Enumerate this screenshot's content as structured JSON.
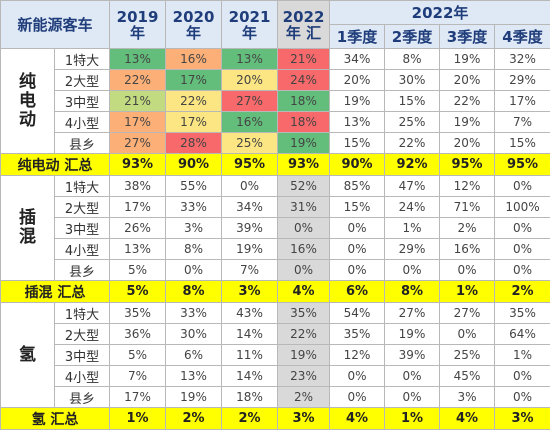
{
  "header": {
    "title": "新能源客车",
    "years": [
      {
        "year": "2019",
        "suffix": "年"
      },
      {
        "year": "2020",
        "suffix": "年"
      },
      {
        "year": "2021",
        "suffix": "年"
      },
      {
        "year": "2022",
        "suffix": "年 汇"
      }
    ],
    "quarter_group": "2022年",
    "quarters": [
      "1季度",
      "2季度",
      "3季度",
      "4季度"
    ]
  },
  "colors": {
    "green": "#63be7b",
    "yellow_green": "#c2db80",
    "yellow": "#fbe683",
    "orange": "#fcb078",
    "red": "#f8696b",
    "summary": "#ffff00",
    "header_bg": "#dfe9f6",
    "gray_col": "#d9d9d9"
  },
  "groups": [
    {
      "label": "纯电动",
      "rows": [
        {
          "sub": "1特大",
          "values": [
            "13%",
            "16%",
            "13%",
            "21%",
            "34%",
            "8%",
            "19%",
            "32%"
          ],
          "heat": [
            "green",
            "orange",
            "green",
            "red"
          ]
        },
        {
          "sub": "2大型",
          "values": [
            "22%",
            "17%",
            "20%",
            "24%",
            "20%",
            "30%",
            "20%",
            "29%"
          ],
          "heat": [
            "orange",
            "green",
            "yellow",
            "red"
          ]
        },
        {
          "sub": "3中型",
          "values": [
            "21%",
            "22%",
            "27%",
            "18%",
            "19%",
            "15%",
            "22%",
            "17%"
          ],
          "heat": [
            "yellow_green",
            "yellow",
            "red",
            "green"
          ]
        },
        {
          "sub": "4小型",
          "values": [
            "17%",
            "17%",
            "16%",
            "18%",
            "13%",
            "25%",
            "19%",
            "7%"
          ],
          "heat": [
            "orange",
            "yellow",
            "green",
            "red"
          ]
        },
        {
          "sub": "县乡",
          "values": [
            "27%",
            "28%",
            "25%",
            "19%",
            "15%",
            "22%",
            "20%",
            "15%"
          ],
          "heat": [
            "orange",
            "red",
            "yellow",
            "green"
          ]
        }
      ],
      "summary": {
        "label": "纯电动 汇总",
        "values": [
          "93%",
          "90%",
          "95%",
          "93%",
          "90%",
          "92%",
          "95%",
          "95%"
        ]
      }
    },
    {
      "label": "插混",
      "rows": [
        {
          "sub": "1特大",
          "values": [
            "38%",
            "55%",
            "0%",
            "52%",
            "85%",
            "47%",
            "12%",
            "0%"
          ]
        },
        {
          "sub": "2大型",
          "values": [
            "17%",
            "33%",
            "34%",
            "31%",
            "15%",
            "24%",
            "71%",
            "100%"
          ]
        },
        {
          "sub": "3中型",
          "values": [
            "26%",
            "3%",
            "39%",
            "0%",
            "0%",
            "1%",
            "2%",
            "0%"
          ]
        },
        {
          "sub": "4小型",
          "values": [
            "13%",
            "8%",
            "19%",
            "16%",
            "0%",
            "29%",
            "16%",
            "0%"
          ]
        },
        {
          "sub": "县乡",
          "values": [
            "5%",
            "0%",
            "7%",
            "0%",
            "0%",
            "0%",
            "0%",
            "0%"
          ]
        }
      ],
      "summary": {
        "label": "插混 汇总",
        "values": [
          "5%",
          "8%",
          "3%",
          "4%",
          "6%",
          "8%",
          "1%",
          "2%"
        ]
      }
    },
    {
      "label": "氢",
      "rows": [
        {
          "sub": "1特大",
          "values": [
            "35%",
            "33%",
            "43%",
            "35%",
            "54%",
            "27%",
            "27%",
            "35%"
          ]
        },
        {
          "sub": "2大型",
          "values": [
            "36%",
            "30%",
            "14%",
            "22%",
            "35%",
            "19%",
            "0%",
            "64%"
          ]
        },
        {
          "sub": "3中型",
          "values": [
            "5%",
            "6%",
            "11%",
            "19%",
            "12%",
            "39%",
            "25%",
            "1%"
          ]
        },
        {
          "sub": "4小型",
          "values": [
            "7%",
            "13%",
            "14%",
            "23%",
            "0%",
            "0%",
            "45%",
            "0%"
          ]
        },
        {
          "sub": "县乡",
          "values": [
            "17%",
            "19%",
            "18%",
            "2%",
            "0%",
            "0%",
            "3%",
            "0%"
          ]
        }
      ],
      "summary": {
        "label": "氢 汇总",
        "values": [
          "1%",
          "2%",
          "2%",
          "3%",
          "4%",
          "1%",
          "4%",
          "3%"
        ]
      }
    }
  ]
}
